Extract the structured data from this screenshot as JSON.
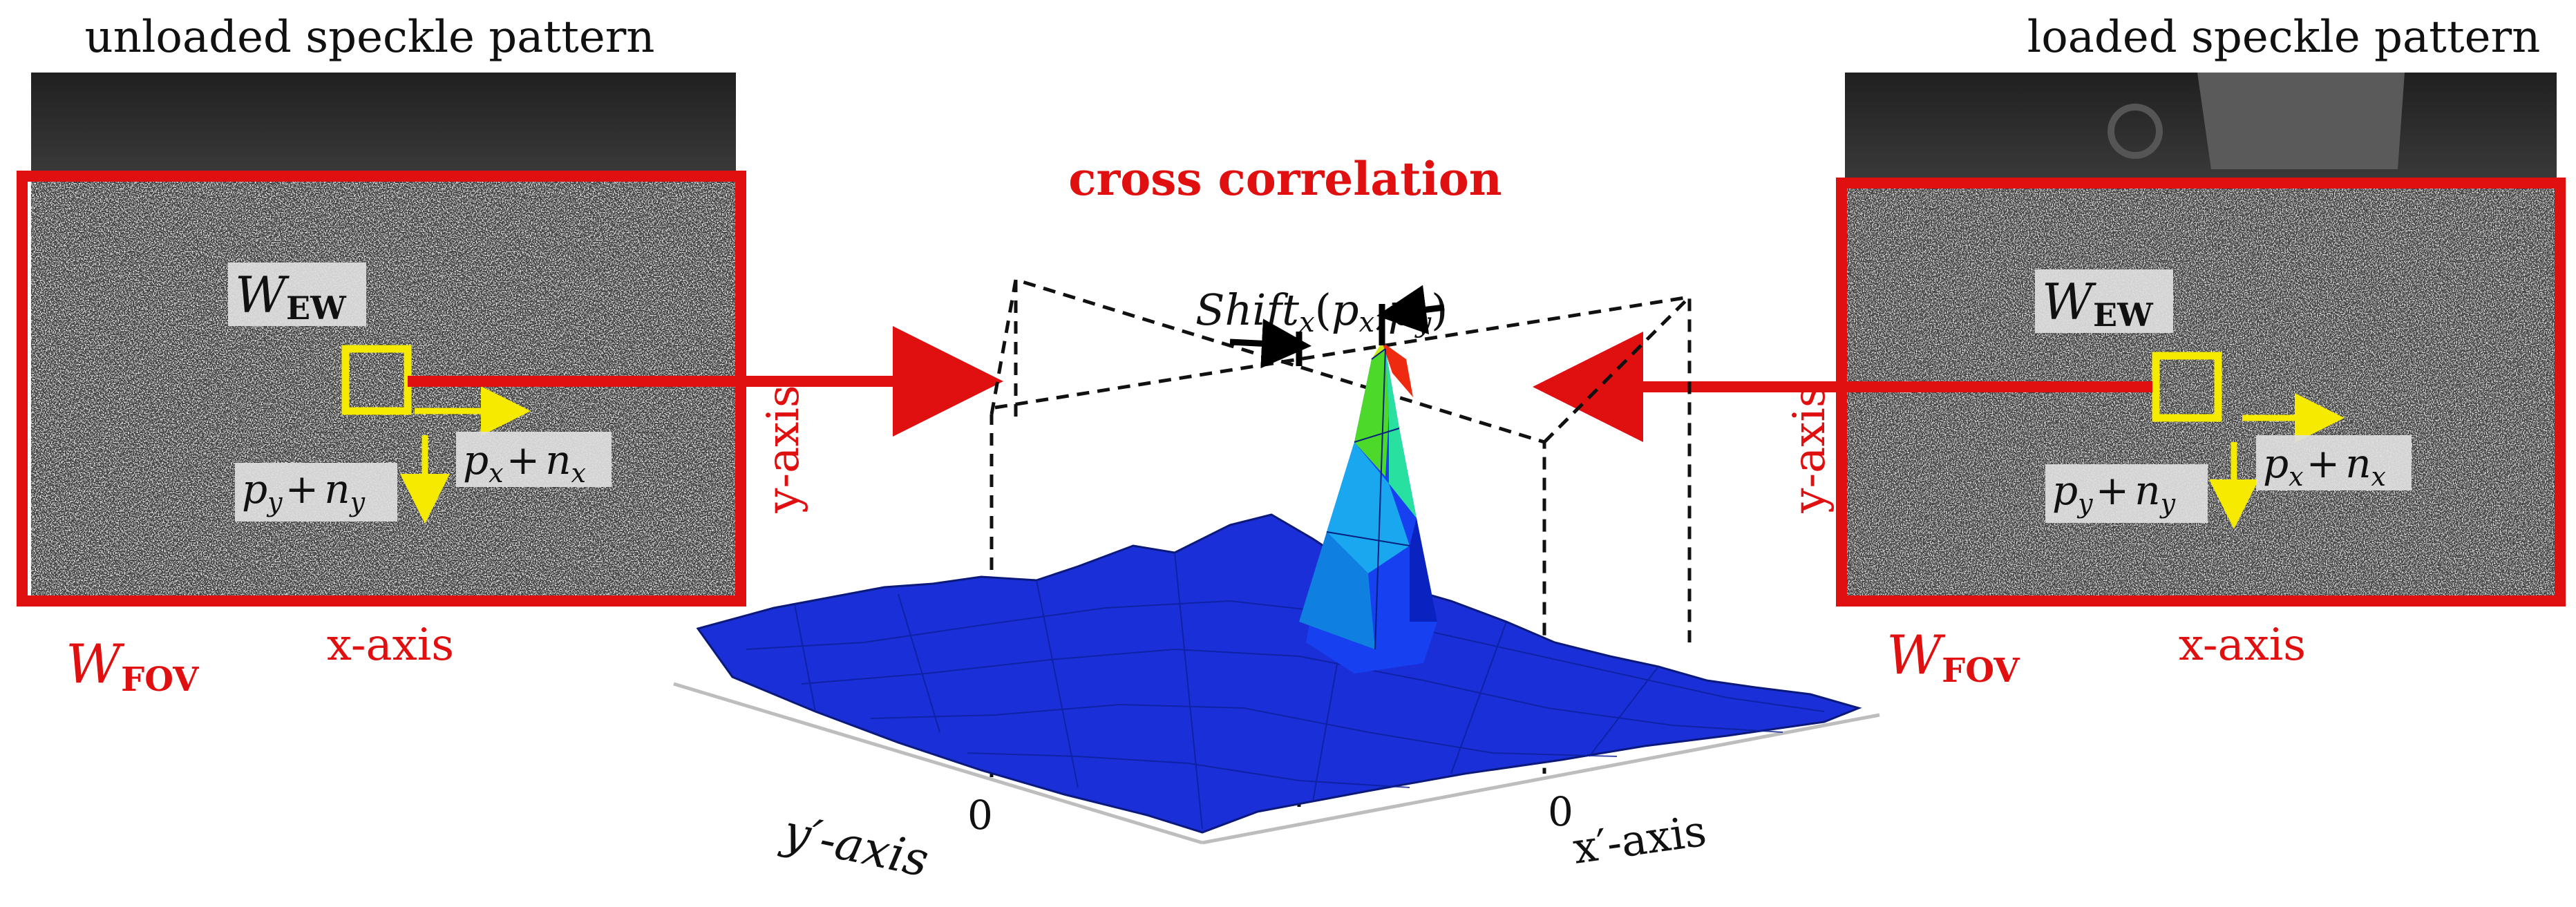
{
  "left_panel": {
    "title": "unloaded speckle pattern",
    "window_label": "W",
    "window_sub": "EW",
    "fov_label": "W",
    "fov_sub": "FOV",
    "x_axis": "x-axis",
    "y_axis": "y-axis",
    "shift_y": {
      "a": "p",
      "a_sub": "y",
      "op": "+",
      "b": "n",
      "b_sub": "y"
    },
    "shift_x": {
      "a": "p",
      "a_sub": "x",
      "op": "+",
      "b": "n",
      "b_sub": "x"
    }
  },
  "right_panel": {
    "title": "loaded speckle pattern",
    "window_label": "W",
    "window_sub": "EW",
    "fov_label": "W",
    "fov_sub": "FOV",
    "x_axis": "x-axis",
    "y_axis": "y-axis",
    "shift_y": {
      "a": "p",
      "a_sub": "y",
      "op": "+",
      "b": "n",
      "b_sub": "y"
    },
    "shift_x": {
      "a": "p",
      "a_sub": "x",
      "op": "+",
      "b": "n",
      "b_sub": "x"
    }
  },
  "center": {
    "title": "cross correlation",
    "shift_label": {
      "word": "Shift",
      "sub": "x",
      "open": "(",
      "px": "p",
      "px_sub": "x",
      "comma": ",",
      "py": "p",
      "py_sub": "y",
      "close": ")"
    },
    "x_axis": "x′-axis",
    "y_axis": "y′-axis",
    "zero_left": "0",
    "zero_right": "0"
  },
  "colors": {
    "accent_red": "#e01010",
    "yellow": "#f5ea00",
    "surface_blue": "#1a2fd8",
    "peak_red": "#ee2a10"
  }
}
